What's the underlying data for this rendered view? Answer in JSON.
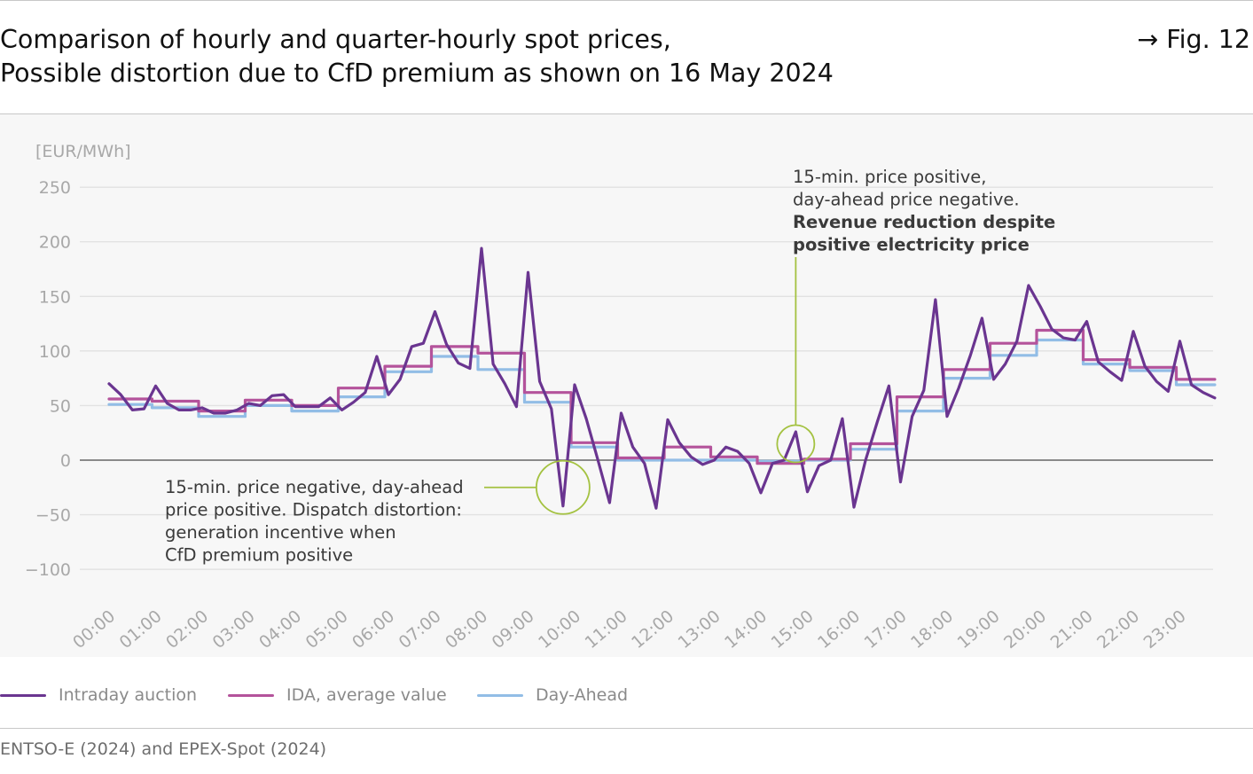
{
  "title_line1": "Comparison of hourly and quarter-hourly spot prices,",
  "title_line2": "Possible distortion due to CfD premium as shown on 16 May 2024",
  "fig_label": "→ Fig. 12",
  "source": "ENTSO-E (2024) and EPEX-Spot (2024)",
  "colors": {
    "intraday": "#6a3590",
    "ida_avg": "#b4539b",
    "day_ahead": "#92bde6",
    "annotation": "#a4c241",
    "grid": "#e2e2e2",
    "zero_line": "#4a4a4a",
    "tick_text": "#a8a8a8"
  },
  "chart_data": {
    "type": "line",
    "ylabel": "[EUR/MWh]",
    "ylim": [
      -100,
      250
    ],
    "yticks": [
      250,
      200,
      150,
      100,
      50,
      0,
      -50,
      -100
    ],
    "ytick_labels": [
      "250",
      "200",
      "150",
      "100",
      "50",
      "0",
      "−50",
      "−100"
    ],
    "xticks": [
      "00:00",
      "01:00",
      "02:00",
      "03:00",
      "04:00",
      "05:00",
      "06:00",
      "07:00",
      "08:00",
      "09:00",
      "10:00",
      "11:00",
      "12:00",
      "13:00",
      "14:00",
      "15:00",
      "16:00",
      "17:00",
      "18:00",
      "19:00",
      "20:00",
      "21:00",
      "22:00",
      "23:00"
    ],
    "x_range_hours": [
      0,
      23.75
    ],
    "grid": true,
    "legend_position": "bottom",
    "series": [
      {
        "name": "Intraday auction",
        "key": "intraday",
        "step": false,
        "x_hours": [
          0,
          0.25,
          0.5,
          0.75,
          1,
          1.25,
          1.5,
          1.75,
          2,
          2.25,
          2.5,
          2.75,
          3,
          3.25,
          3.5,
          3.75,
          4,
          4.25,
          4.5,
          4.75,
          5,
          5.25,
          5.5,
          5.75,
          6,
          6.25,
          6.5,
          6.75,
          7,
          7.25,
          7.5,
          7.75,
          8,
          8.25,
          8.5,
          8.75,
          9,
          9.25,
          9.5,
          9.75,
          10,
          10.25,
          10.5,
          10.75,
          11,
          11.25,
          11.5,
          11.75,
          12,
          12.25,
          12.5,
          12.75,
          13,
          13.25,
          13.5,
          13.75,
          14,
          14.25,
          14.5,
          14.75,
          15,
          15.25,
          15.5,
          15.75,
          16,
          16.25,
          16.5,
          16.75,
          17,
          17.25,
          17.5,
          17.75,
          18,
          18.25,
          18.5,
          18.75,
          19,
          19.25,
          19.5,
          19.75,
          20,
          20.25,
          20.5,
          20.75,
          21,
          21.25,
          21.5,
          21.75,
          22,
          22.25,
          22.5,
          22.75,
          23,
          23.25,
          23.5,
          23.75
        ],
        "values": [
          70,
          60,
          46,
          47,
          68,
          52,
          46,
          46,
          48,
          43,
          43,
          46,
          52,
          50,
          59,
          60,
          49,
          49,
          49,
          57,
          46,
          53,
          62,
          95,
          60,
          74,
          104,
          107,
          136,
          106,
          89,
          84,
          194,
          88,
          70,
          49,
          172,
          72,
          47,
          -42,
          69,
          38,
          0,
          -39,
          43,
          12,
          -3,
          -44,
          37,
          16,
          3,
          -4,
          0,
          12,
          8,
          -3,
          -30,
          -3,
          0,
          26,
          -29,
          -5,
          0,
          38,
          -43,
          0,
          35,
          68,
          -20,
          40,
          64,
          147,
          40,
          66,
          96,
          130,
          74,
          88,
          109,
          160,
          141,
          120,
          112,
          110,
          127,
          90,
          81,
          73,
          118,
          86,
          72,
          63,
          109,
          69,
          62,
          57
        ]
      },
      {
        "name": "IDA, average value",
        "key": "ida_avg",
        "step": true,
        "x_hours": [
          0,
          1,
          2,
          3,
          4,
          5,
          6,
          7,
          8,
          9,
          10,
          11,
          12,
          13,
          14,
          15,
          16,
          17,
          18,
          19,
          20,
          21,
          22,
          23
        ],
        "values": [
          56,
          54,
          45,
          55,
          50,
          66,
          86,
          104,
          98,
          62,
          16,
          2,
          12,
          3,
          -3,
          1,
          15,
          58,
          83,
          107,
          119,
          92,
          85,
          74
        ]
      },
      {
        "name": "Day-Ahead",
        "key": "day_ahead",
        "step": true,
        "x_hours": [
          0,
          1,
          2,
          3,
          4,
          5,
          6,
          7,
          8,
          9,
          10,
          11,
          12,
          13,
          14,
          15,
          16,
          17,
          18,
          19,
          20,
          21,
          22,
          23
        ],
        "values": [
          51,
          48,
          40,
          50,
          45,
          58,
          81,
          95,
          83,
          53,
          12,
          0,
          0,
          0,
          -1,
          0,
          10,
          45,
          75,
          96,
          110,
          88,
          82,
          69
        ]
      }
    ],
    "annotations": [
      {
        "lines": [
          "15-min. price negative, day-ahead",
          "price positive.  Dispatch distortion:",
          "generation incentive when",
          "CfD premium positive"
        ],
        "bold_lines": [],
        "target_hour": 9.75,
        "target_value": -25
      },
      {
        "lines": [
          "15-min. price positive,",
          "day-ahead price negative."
        ],
        "bold_lines": [
          "Revenue reduction despite",
          "positive electricity price"
        ],
        "target_hour": 14.75,
        "target_value": 15
      }
    ]
  }
}
